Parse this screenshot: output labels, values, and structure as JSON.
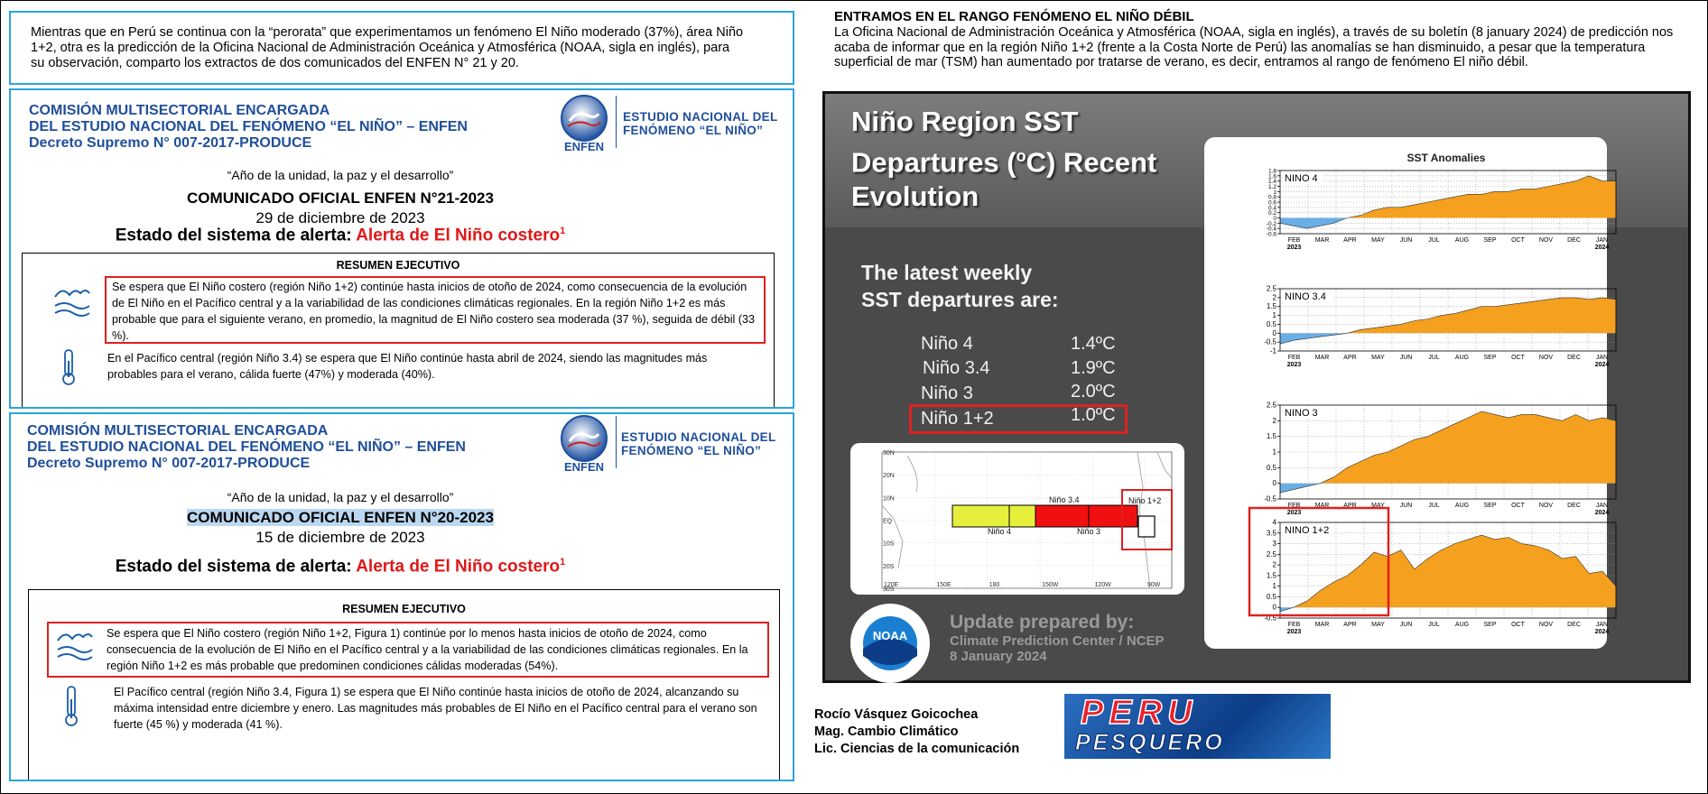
{
  "intro": "Mientras que en Perú se continua con la “perorata” que experimentamos un fenómeno El Niño moderado (37%), área Niño 1+2, otra es la predicción de la Oficina Nacional de Administración Oceánica y Atmosférica (NOAA, sigla en inglés), para su observación, comparto los extractos de dos comunicados del ENFEN N° 21 y 20.",
  "enfen_header": {
    "lines": [
      "COMISIÓN MULTISECTORIAL ENCARGADA",
      "DEL ESTUDIO NACIONAL DEL FENÓMENO “EL NIÑO” – ENFEN",
      "Decreto Supremo N° 007-2017-PRODUCE"
    ],
    "logo_text": "ENFEN",
    "logo_caption": [
      "ESTUDIO NACIONAL DEL",
      "FENÓMENO “EL NIÑO”"
    ],
    "motto": "“Año de la unidad, la paz y el desarrollo”",
    "estado_label": "Estado del sistema de alerta:",
    "alerta": "Alerta de El Niño costero",
    "footnote": "1",
    "summary_title": "RESUMEN EJECUTIVO"
  },
  "comunicados": [
    {
      "title": "COMUNICADO OFICIAL ENFEN N°21-2023",
      "date": "29 de diciembre de 2023",
      "paragraphs": [
        "Se espera que El Niño costero (región Niño 1+2) continúe hasta inicios de otoño de 2024, como consecuencia de la evolución de El Niño en el Pacífico central y a la variabilidad de las condiciones climáticas regionales. En la región Niño 1+2 es más probable que para el siguiente verano, en promedio, la magnitud de El Niño costero sea moderada (37 %), seguida de débil (33 %).",
        "En el Pacífico central (región Niño 3.4) se espera que El Niño continúe hasta abril de 2024, siendo las magnitudes más probables para el verano, cálida fuerte (47%) y moderada (40%)."
      ]
    },
    {
      "title": "COMUNICADO OFICIAL ENFEN N°20-2023",
      "date": "15 de diciembre de 2023",
      "paragraphs": [
        "Se espera que El Niño costero (región Niño 1+2, Figura 1) continúe por lo menos hasta inicios de otoño de 2024, como consecuencia de la evolución de El Niño en el Pacífico central y a la variabilidad de las condiciones climáticas regionales. En la región Niño 1+2 es más probable que predominen condiciones cálidas moderadas (54%).",
        "El Pacífico central (región Niño 3.4, Figura 1) se espera que El Niño continúe hasta inicios de otoño de 2024, alcanzando su máxima intensidad entre diciembre y enero. Las magnitudes más probables de El Niño en el Pacífico central para el verano son fuerte (45 %) y moderada (41 %)."
      ]
    }
  ],
  "article": {
    "heading": "ENTRAMOS EN EL RANGO FENÓMENO EL NIÑO DÉBIL",
    "body": "La Oficina Nacional de Administración Oceánica y Atmosférica (NOAA, sigla en inglés), a través de su boletín (8 january 2024) de predicción nos acaba de informar que en la región Niño 1+2 (frente a la Costa Norte de Perú) las anomalías se han disminuido, a pesar que la temperatura superficial de mar (TSM) han aumentado por tratarse de verano, es decir, entramos al rango de fenómeno El niño débil."
  },
  "slide": {
    "title": [
      "Niño Region SST",
      "Departures (",
      "o",
      "C) Recent",
      "Evolution"
    ],
    "latest": [
      "The latest weekly",
      "SST departures are:"
    ],
    "table": [
      [
        "Niño 4",
        "1.4ºC"
      ],
      [
        "Niño 3.4",
        "1.9ºC"
      ],
      [
        "Niño 3",
        "2.0ºC"
      ],
      [
        "Niño 1+2",
        "1.0ºC"
      ]
    ],
    "update": [
      "Update prepared by:",
      "Climate Prediction Center / NCEP",
      "8 January 2024"
    ],
    "noaa": "NOAA",
    "panel_title": "SST Anomalies"
  },
  "map": {
    "lat_labels": [
      "30N",
      "20N",
      "10N",
      "EQ",
      "10S",
      "20S",
      "30S"
    ],
    "lon_labels": [
      "120E",
      "150E",
      "180",
      "150W",
      "120W",
      "90W"
    ],
    "regions": [
      "Niño 3.4",
      "Niño 4",
      "Niño 3",
      "Niño 1+2"
    ]
  },
  "chart_data": [
    {
      "type": "area",
      "title": "NINO 4",
      "ylim": [
        -0.6,
        1.8
      ],
      "yticks": [
        1.8,
        1.6,
        1.4,
        1.2,
        1,
        0.8,
        0.6,
        0.4,
        0.2,
        0,
        -0.2,
        -0.4,
        -0.6
      ],
      "x_labels": [
        "FEB",
        "MAR",
        "APR",
        "MAY",
        "JUN",
        "JUL",
        "AUG",
        "SEP",
        "OCT",
        "NOV",
        "DEC",
        "JAN"
      ],
      "year_labels": [
        "2023",
        "2024"
      ],
      "colors": [
        "#f5a01e",
        "#6aaee6"
      ],
      "grid": true,
      "values": [
        -0.2,
        -0.3,
        -0.4,
        -0.3,
        -0.2,
        0,
        0.1,
        0.3,
        0.4,
        0.4,
        0.5,
        0.6,
        0.7,
        0.8,
        0.9,
        0.9,
        1.0,
        1.0,
        1.1,
        1.1,
        1.2,
        1.3,
        1.4,
        1.6,
        1.4,
        1.4
      ]
    },
    {
      "type": "area",
      "title": "NINO 3.4",
      "ylim": [
        -1,
        2.5
      ],
      "yticks": [
        2.5,
        2,
        1.5,
        1,
        0.5,
        0,
        -0.5,
        -1
      ],
      "x_labels": [
        "FEB",
        "MAR",
        "APR",
        "MAY",
        "JUN",
        "JUL",
        "AUG",
        "SEP",
        "OCT",
        "NOV",
        "DEC",
        "JAN"
      ],
      "year_labels": [
        "2023",
        "2024"
      ],
      "colors": [
        "#f5a01e",
        "#6aaee6"
      ],
      "grid": true,
      "values": [
        -0.6,
        -0.4,
        -0.3,
        -0.2,
        -0.1,
        0,
        0.2,
        0.3,
        0.4,
        0.5,
        0.7,
        0.8,
        1.0,
        1.1,
        1.3,
        1.5,
        1.5,
        1.6,
        1.7,
        1.8,
        1.9,
        2.0,
        2.0,
        1.9,
        2.0,
        1.9
      ]
    },
    {
      "type": "area",
      "title": "NINO 3",
      "ylim": [
        -0.5,
        2.5
      ],
      "yticks": [
        2.5,
        2,
        1.5,
        1,
        0.5,
        0,
        -0.5
      ],
      "x_labels": [
        "FEB",
        "MAR",
        "APR",
        "MAY",
        "JUN",
        "JUL",
        "AUG",
        "SEP",
        "OCT",
        "NOV",
        "DEC",
        "JAN"
      ],
      "year_labels": [
        "2023",
        "2024"
      ],
      "colors": [
        "#f5a01e",
        "#6aaee6"
      ],
      "grid": true,
      "values": [
        -0.3,
        -0.2,
        -0.1,
        0,
        0.2,
        0.5,
        0.7,
        0.9,
        1.0,
        1.2,
        1.4,
        1.5,
        1.7,
        1.9,
        2.1,
        2.3,
        2.2,
        2.1,
        2.2,
        2.2,
        2.1,
        2.0,
        2.2,
        2.0,
        2.1,
        2.0
      ]
    },
    {
      "type": "area",
      "title": "NINO 1+2",
      "ylim": [
        -0.5,
        4
      ],
      "yticks": [
        4,
        3.5,
        3,
        2.5,
        2,
        1.5,
        1,
        0.5,
        0,
        -0.5
      ],
      "x_labels": [
        "FEB",
        "MAR",
        "APR",
        "MAY",
        "JUN",
        "JUL",
        "AUG",
        "SEP",
        "OCT",
        "NOV",
        "DEC",
        "JAN"
      ],
      "year_labels": [
        "2023",
        "2024"
      ],
      "colors": [
        "#f5a01e",
        "#6aaee6"
      ],
      "grid": true,
      "values": [
        -0.2,
        0,
        0.3,
        0.8,
        1.2,
        1.5,
        2.0,
        2.6,
        2.4,
        2.7,
        1.8,
        2.3,
        2.7,
        3.0,
        3.2,
        3.4,
        3.2,
        3.3,
        3.0,
        2.9,
        2.7,
        2.3,
        2.4,
        1.6,
        1.7,
        1.0
      ]
    }
  ],
  "author": [
    "Rocío Vásquez Goicochea",
    "Mag. Cambio Climático",
    "Lic.  Ciencias de la comunicación"
  ],
  "logo": [
    "PERU",
    "PESQUERO"
  ]
}
